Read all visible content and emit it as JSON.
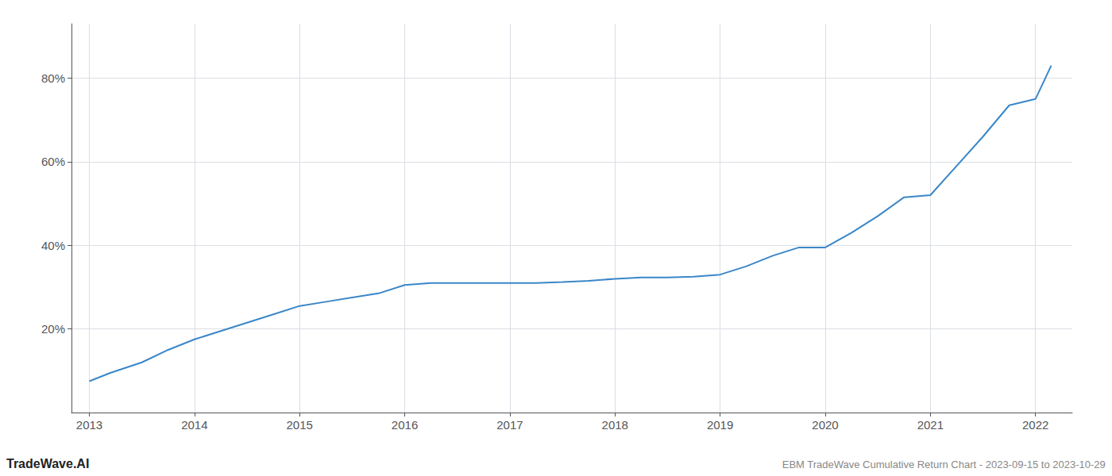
{
  "chart_data": {
    "type": "line",
    "x": [
      2013.0,
      2013.2,
      2013.5,
      2013.75,
      2014.0,
      2014.25,
      2014.5,
      2014.75,
      2015.0,
      2015.25,
      2015.5,
      2015.75,
      2016.0,
      2016.25,
      2016.5,
      2016.75,
      2017.0,
      2017.25,
      2017.5,
      2017.75,
      2018.0,
      2018.25,
      2018.5,
      2018.75,
      2019.0,
      2019.25,
      2019.5,
      2019.75,
      2020.0,
      2020.25,
      2020.5,
      2020.75,
      2021.0,
      2021.25,
      2021.5,
      2021.75,
      2022.0,
      2022.15
    ],
    "values": [
      7.5,
      9.5,
      12.0,
      15.0,
      17.5,
      19.5,
      21.5,
      23.5,
      25.5,
      26.5,
      27.5,
      28.5,
      30.5,
      31.0,
      31.0,
      31.0,
      31.0,
      31.0,
      31.2,
      31.5,
      32.0,
      32.3,
      32.3,
      32.5,
      33.0,
      35.0,
      37.5,
      39.5,
      39.5,
      43.0,
      47.0,
      51.5,
      52.0,
      59.0,
      66.0,
      73.5,
      75.0,
      83.0
    ],
    "color": "#3a87c8",
    "xlim": [
      2012.83,
      2022.35
    ],
    "xticks": [
      2013,
      2014,
      2015,
      2016,
      2017,
      2018,
      2019,
      2020,
      2021,
      2022
    ],
    "ylim": [
      0,
      93
    ],
    "yticks": [
      {
        "value": 20,
        "label": "20%"
      },
      {
        "value": 40,
        "label": "40%"
      },
      {
        "value": 60,
        "label": "60%"
      },
      {
        "value": 80,
        "label": "80%"
      }
    ],
    "grid": true,
    "annotations": [
      "TradeWave.AI",
      "EBM TradeWave Cumulative Return Chart - 2023-09-15 to 2023-10-29"
    ]
  }
}
